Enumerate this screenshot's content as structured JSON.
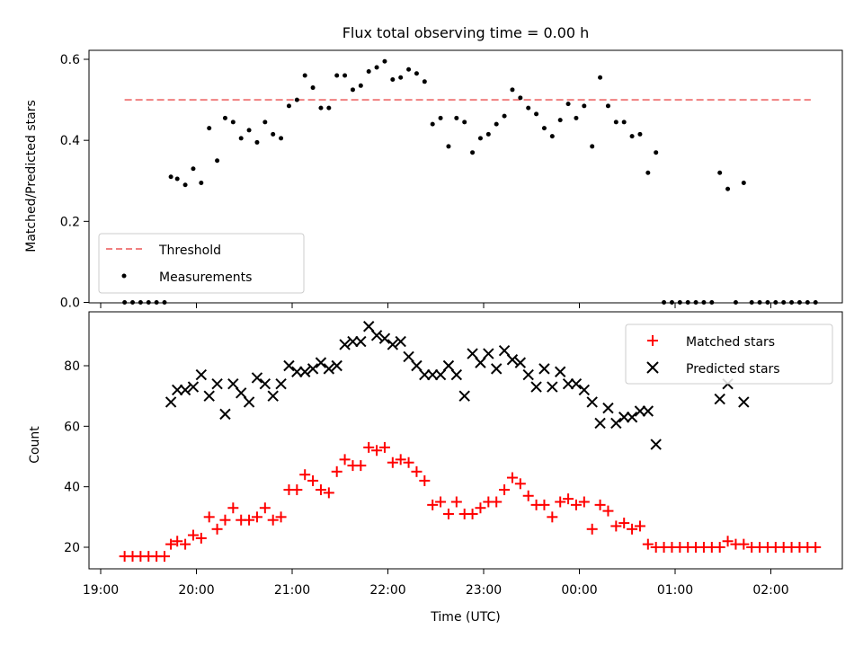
{
  "figure": {
    "title": "Flux total observing time = 0.00 h"
  },
  "chart_data": [
    {
      "type": "scatter",
      "panel": "top",
      "ylabel": "Matched/Predicted stars",
      "xlabel": "",
      "ylim": [
        0.0,
        0.62
      ],
      "yticks": [
        0.0,
        0.2,
        0.4,
        0.6
      ],
      "ytick_labels": [
        "0.0",
        "0.2",
        "0.4",
        "0.6"
      ],
      "legend": {
        "position": "lower-left",
        "entries": [
          "Threshold",
          "Measurements"
        ]
      },
      "threshold": {
        "name": "Threshold",
        "value": 0.5,
        "x_start": "19:15",
        "x_end": "02:25",
        "color": "#f08080"
      },
      "series": [
        {
          "name": "Measurements",
          "color": "#000000",
          "x": [
            "19:15",
            "19:20",
            "19:25",
            "19:30",
            "19:35",
            "19:40",
            "19:44",
            "19:48",
            "19:53",
            "19:58",
            "20:03",
            "20:08",
            "20:13",
            "20:18",
            "20:23",
            "20:28",
            "20:33",
            "20:38",
            "20:43",
            "20:48",
            "20:53",
            "20:58",
            "21:03",
            "21:08",
            "21:13",
            "21:18",
            "21:23",
            "21:28",
            "21:33",
            "21:38",
            "21:43",
            "21:48",
            "21:53",
            "21:58",
            "22:03",
            "22:08",
            "22:13",
            "22:18",
            "22:23",
            "22:28",
            "22:33",
            "22:38",
            "22:43",
            "22:48",
            "22:53",
            "22:58",
            "23:03",
            "23:08",
            "23:13",
            "23:18",
            "23:23",
            "23:28",
            "23:33",
            "23:38",
            "23:43",
            "23:48",
            "23:53",
            "23:58",
            "00:03",
            "00:08",
            "00:13",
            "00:18",
            "00:23",
            "00:28",
            "00:33",
            "00:38",
            "00:43",
            "00:48",
            "00:53",
            "00:58",
            "01:03",
            "01:08",
            "01:13",
            "01:18",
            "01:23",
            "01:28",
            "01:33",
            "01:38",
            "01:43",
            "01:48",
            "01:53",
            "01:58",
            "02:03",
            "02:08",
            "02:13",
            "02:18",
            "02:23",
            "02:28"
          ],
          "values": [
            0,
            0,
            0,
            0,
            0,
            0,
            0.31,
            0.305,
            0.29,
            0.33,
            0.295,
            0.43,
            0.35,
            0.455,
            0.445,
            0.405,
            0.425,
            0.395,
            0.445,
            0.415,
            0.405,
            0.485,
            0.5,
            0.56,
            0.53,
            0.48,
            0.48,
            0.56,
            0.56,
            0.525,
            0.535,
            0.57,
            0.58,
            0.595,
            0.55,
            0.555,
            0.575,
            0.565,
            0.545,
            0.44,
            0.455,
            0.385,
            0.455,
            0.445,
            0.37,
            0.405,
            0.415,
            0.44,
            0.46,
            0.525,
            0.505,
            0.48,
            0.465,
            0.43,
            0.41,
            0.45,
            0.49,
            0.455,
            0.485,
            0.385,
            0.555,
            0.485,
            0.445,
            0.445,
            0.41,
            0.415,
            0.32,
            0.37,
            0,
            0,
            0,
            0,
            0,
            0,
            0,
            0.32,
            0.28,
            0,
            0.295,
            0,
            0,
            0,
            0,
            0,
            0,
            0,
            0,
            0
          ]
        }
      ]
    },
    {
      "type": "scatter",
      "panel": "bottom",
      "xlabel": "Time (UTC)",
      "ylabel": "Count",
      "ylim": [
        13,
        97
      ],
      "yticks": [
        20,
        40,
        60,
        80
      ],
      "ytick_labels": [
        "20",
        "40",
        "60",
        "80"
      ],
      "xticks": [
        "19:00",
        "20:00",
        "21:00",
        "22:00",
        "23:00",
        "00:00",
        "01:00",
        "02:00"
      ],
      "legend": {
        "position": "top-right",
        "entries": [
          "Matched stars",
          "Predicted stars"
        ]
      },
      "series": [
        {
          "name": "Matched stars",
          "marker": "plus",
          "color": "#ff0000",
          "x": [
            "19:15",
            "19:20",
            "19:25",
            "19:30",
            "19:35",
            "19:40",
            "19:44",
            "19:48",
            "19:53",
            "19:58",
            "20:03",
            "20:08",
            "20:13",
            "20:18",
            "20:23",
            "20:28",
            "20:33",
            "20:38",
            "20:43",
            "20:48",
            "20:53",
            "20:58",
            "21:03",
            "21:08",
            "21:13",
            "21:18",
            "21:23",
            "21:28",
            "21:33",
            "21:38",
            "21:43",
            "21:48",
            "21:53",
            "21:58",
            "22:03",
            "22:08",
            "22:13",
            "22:18",
            "22:23",
            "22:28",
            "22:33",
            "22:38",
            "22:43",
            "22:48",
            "22:53",
            "22:58",
            "23:03",
            "23:08",
            "23:13",
            "23:18",
            "23:23",
            "23:28",
            "23:33",
            "23:38",
            "23:43",
            "23:48",
            "23:53",
            "23:58",
            "00:03",
            "00:08",
            "00:13",
            "00:18",
            "00:23",
            "00:28",
            "00:33",
            "00:38",
            "00:43",
            "00:48",
            "00:53",
            "00:58",
            "01:03",
            "01:08",
            "01:13",
            "01:18",
            "01:23",
            "01:28",
            "01:33",
            "01:38",
            "01:43",
            "01:48",
            "01:53",
            "01:58",
            "02:03",
            "02:08",
            "02:13",
            "02:18",
            "02:23",
            "02:28"
          ],
          "values": [
            17,
            17,
            17,
            17,
            17,
            17,
            21,
            22,
            21,
            24,
            23,
            30,
            26,
            29,
            33,
            29,
            29,
            30,
            33,
            29,
            30,
            39,
            39,
            44,
            42,
            39,
            38,
            45,
            49,
            47,
            47,
            53,
            52,
            53,
            48,
            49,
            48,
            45,
            42,
            34,
            35,
            31,
            35,
            31,
            31,
            33,
            35,
            35,
            39,
            43,
            41,
            37,
            34,
            34,
            30,
            35,
            36,
            34,
            35,
            26,
            34,
            32,
            27,
            28,
            26,
            27,
            21,
            20,
            20,
            20,
            20,
            20,
            20,
            20,
            20,
            20,
            22,
            21,
            21,
            20,
            20,
            20,
            20,
            20,
            20,
            20,
            20,
            20
          ]
        },
        {
          "name": "Predicted stars",
          "marker": "x",
          "color": "#000000",
          "x": [
            "19:44",
            "19:48",
            "19:53",
            "19:58",
            "20:03",
            "20:08",
            "20:13",
            "20:18",
            "20:23",
            "20:28",
            "20:33",
            "20:38",
            "20:43",
            "20:48",
            "20:53",
            "20:58",
            "21:03",
            "21:08",
            "21:13",
            "21:18",
            "21:23",
            "21:28",
            "21:33",
            "21:38",
            "21:43",
            "21:48",
            "21:53",
            "21:58",
            "22:03",
            "22:08",
            "22:13",
            "22:18",
            "22:23",
            "22:28",
            "22:33",
            "22:38",
            "22:43",
            "22:48",
            "22:53",
            "22:58",
            "23:03",
            "23:08",
            "23:13",
            "23:18",
            "23:23",
            "23:28",
            "23:33",
            "23:38",
            "23:43",
            "23:48",
            "23:53",
            "23:58",
            "00:03",
            "00:08",
            "00:13",
            "00:18",
            "00:23",
            "00:28",
            "00:33",
            "00:38",
            "00:43",
            "00:48",
            "01:28",
            "01:33",
            "01:43"
          ],
          "values": [
            68,
            72,
            72,
            73,
            77,
            70,
            74,
            64,
            74,
            71,
            68,
            76,
            74,
            70,
            74,
            80,
            78,
            78,
            79,
            81,
            79,
            80,
            87,
            88,
            88,
            93,
            90,
            89,
            87,
            88,
            83,
            80,
            77,
            77,
            77,
            80,
            77,
            70,
            84,
            81,
            84,
            79,
            85,
            82,
            81,
            77,
            73,
            79,
            73,
            78,
            74,
            74,
            72,
            68,
            61,
            66,
            61,
            63,
            63,
            65,
            65,
            54,
            69,
            74,
            68
          ]
        }
      ]
    }
  ]
}
